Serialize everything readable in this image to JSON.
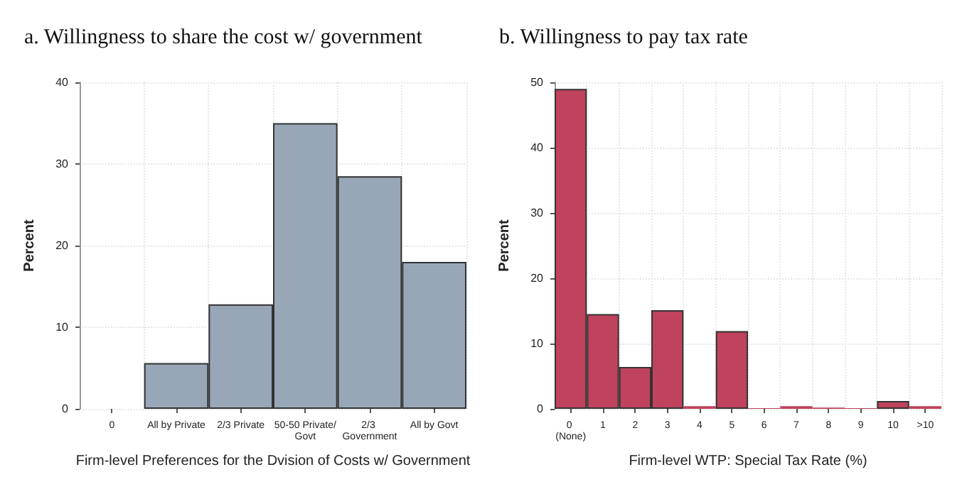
{
  "chart_data": [
    {
      "type": "bar",
      "title": "a. Willingness to share the cost w/ government",
      "xlabel": "Firm-level Preferences for the Dvision of Costs w/ Government",
      "ylabel": "Percent",
      "categories": [
        "0",
        "All by Private",
        "2/3 Private",
        "50-50 Private/Govt",
        "2/3 Government",
        "All by Govt"
      ],
      "values": [
        null,
        5.6,
        12.8,
        35,
        28.5,
        18
      ],
      "color": "#97a7b8",
      "ylim": [
        0,
        40
      ],
      "yticks": [
        0,
        10,
        20,
        30,
        40
      ],
      "grid": true
    },
    {
      "type": "bar",
      "title": "b. Willingness to pay tax rate",
      "xlabel": "Firm-level WTP: Special Tax Rate (%)",
      "ylabel": "Percent",
      "categories": [
        "0 (None)",
        "1",
        "2",
        "3",
        "4",
        "5",
        "6",
        "7",
        "8",
        "9",
        "10",
        ">10"
      ],
      "values": [
        49,
        14.5,
        6.4,
        15.1,
        0.4,
        11.9,
        0.1,
        0.4,
        0.2,
        0.1,
        1.2,
        0.4
      ],
      "color": "#c0435e",
      "ylim": [
        0,
        50
      ],
      "yticks": [
        0,
        10,
        20,
        30,
        40,
        50
      ],
      "grid": true
    }
  ]
}
